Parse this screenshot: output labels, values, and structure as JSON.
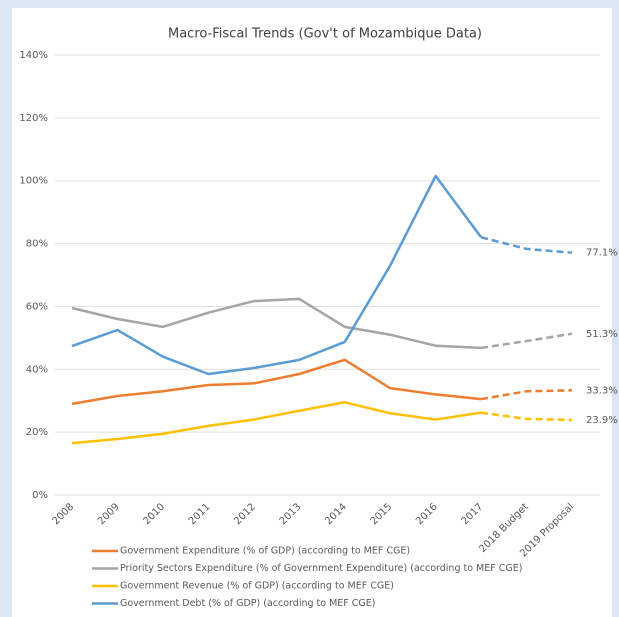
{
  "chart_data": {
    "type": "line",
    "title": "Macro-Fiscal Trends (Gov't of Mozambique Data)",
    "categories": [
      "2008",
      "2009",
      "2010",
      "2011",
      "2012",
      "2013",
      "2014",
      "2015",
      "2016",
      "2017",
      "2018 Budget",
      "2019 Proposal"
    ],
    "series": [
      {
        "name": "Government Expenditure (% of GDP) (according to MEF CGE)",
        "color": "#ed7d31",
        "values": [
          29,
          31.5,
          33,
          35,
          35.5,
          38.5,
          43,
          34,
          32,
          30.5,
          33,
          33.3
        ],
        "value_labels": [
          null,
          null,
          null,
          null,
          null,
          null,
          null,
          null,
          null,
          null,
          null,
          "33.3%"
        ]
      },
      {
        "name": "Priority Sectors Expenditure (% of Government Expenditure) (according to MEF CGE)",
        "color": "#a5a5a5",
        "values": [
          59.5,
          56,
          53.5,
          58,
          61.7,
          62.4,
          53.5,
          51,
          47.5,
          46.8,
          49,
          51.3
        ],
        "value_labels": [
          null,
          null,
          null,
          null,
          null,
          null,
          null,
          null,
          null,
          null,
          null,
          "51.3%"
        ]
      },
      {
        "name": "Government Revenue (% of GDP) (according to MEF CGE)",
        "color": "#ffc000",
        "values": [
          16.5,
          17.8,
          19.5,
          22,
          24,
          26.8,
          29.5,
          26,
          24,
          26.2,
          24.2,
          23.9
        ],
        "value_labels": [
          null,
          null,
          null,
          null,
          null,
          null,
          null,
          null,
          null,
          null,
          null,
          "23.9%"
        ]
      },
      {
        "name": "Government  Debt (% of GDP) (according to MEF CGE)",
        "color": "#5b9bd5",
        "values": [
          47.4,
          52.5,
          44,
          38.5,
          40.4,
          43,
          48.7,
          73,
          101.5,
          82,
          78.3,
          77.1
        ],
        "value_labels": [
          null,
          null,
          null,
          null,
          null,
          null,
          null,
          null,
          null,
          null,
          null,
          "77.1%"
        ]
      }
    ],
    "dashed_from_index": 9,
    "ylim": [
      0,
      140
    ],
    "yticks": [
      {
        "value": 0,
        "label": "0%"
      },
      {
        "value": 20,
        "label": "20%"
      },
      {
        "value": 40,
        "label": "40%"
      },
      {
        "value": 60,
        "label": "60%"
      },
      {
        "value": 80,
        "label": "80%"
      },
      {
        "value": 100,
        "label": "100%"
      },
      {
        "value": 120,
        "label": "120%"
      },
      {
        "value": 140,
        "label": "140%"
      }
    ],
    "grid": true
  }
}
